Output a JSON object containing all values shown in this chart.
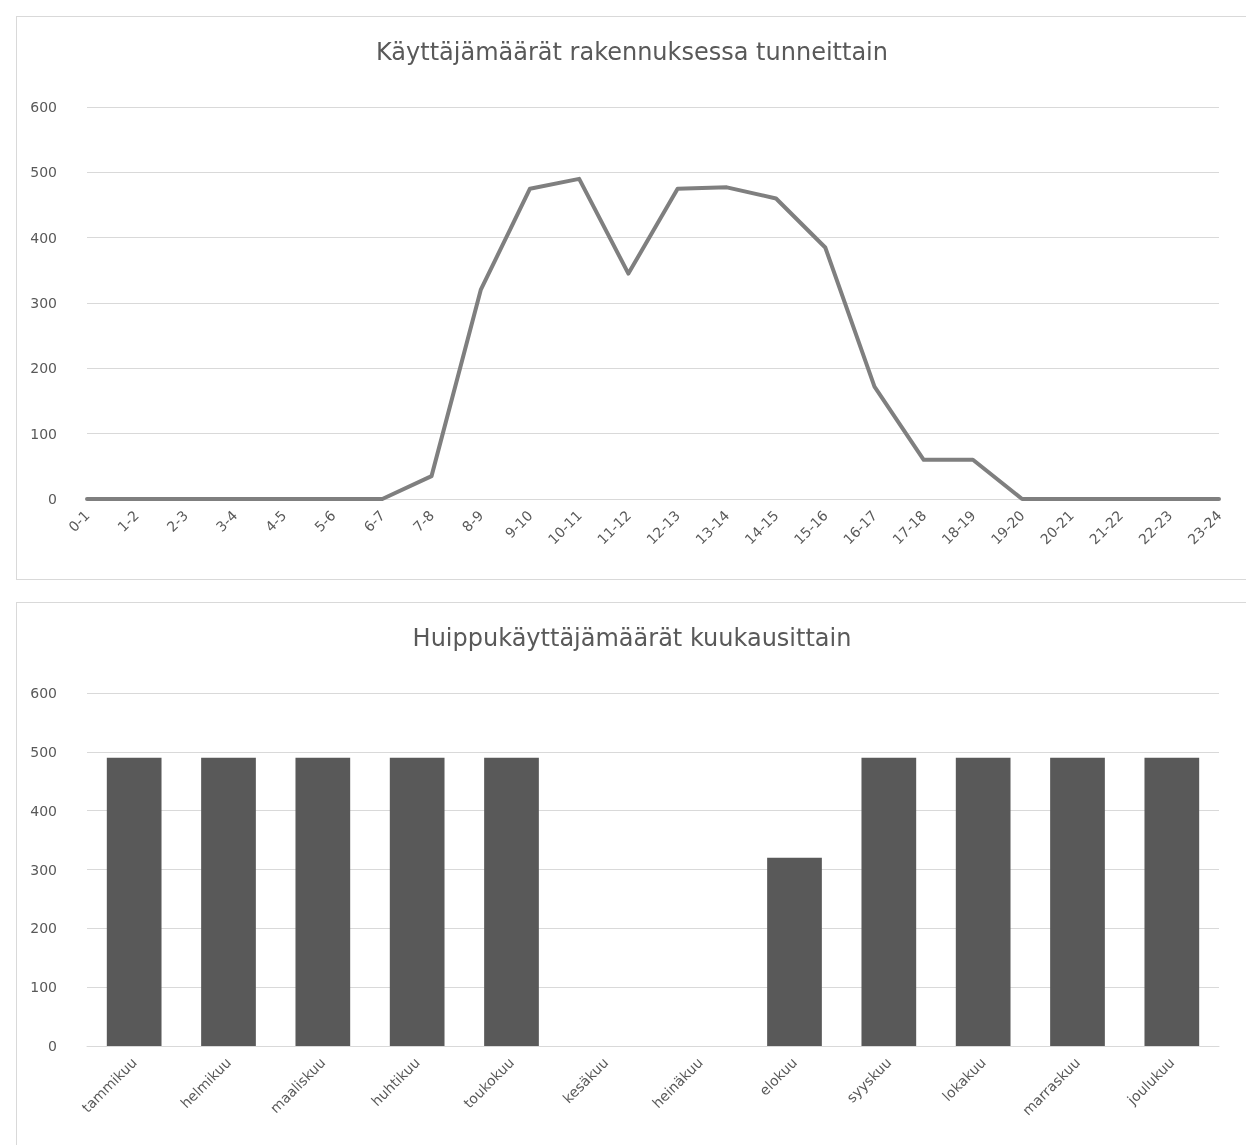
{
  "chart_data": [
    {
      "type": "line",
      "title": "Käyttäjämäärät rakennuksessa tunneittain",
      "categories": [
        "0-1",
        "1-2",
        "2-3",
        "3-4",
        "4-5",
        "5-6",
        "6-7",
        "7-8",
        "8-9",
        "9-10",
        "10-11",
        "11-12",
        "12-13",
        "13-14",
        "14-15",
        "15-16",
        "16-17",
        "17-18",
        "18-19",
        "19-20",
        "20-21",
        "21-22",
        "22-23",
        "23-24"
      ],
      "series": [
        {
          "color": "#7f7f7f",
          "values": [
            0,
            0,
            0,
            0,
            0,
            0,
            0,
            35,
            320,
            475,
            490,
            345,
            475,
            477,
            460,
            385,
            172,
            60,
            60,
            0,
            0,
            0,
            0,
            0
          ]
        }
      ],
      "ylim": [
        0,
        600
      ],
      "yticks": [
        0,
        100,
        200,
        300,
        400,
        500,
        600
      ],
      "grid": "y",
      "marker": "none",
      "line_style": "solid"
    },
    {
      "type": "bar",
      "title": "Huippukäyttäjämäärät kuukausittain",
      "categories": [
        "tammikuu",
        "helmikuu",
        "maaliskuu",
        "huhtikuu",
        "toukokuu",
        "kesäkuu",
        "heinäkuu",
        "elokuu",
        "syyskuu",
        "lokakuu",
        "marraskuu",
        "joulukuu"
      ],
      "series": [
        {
          "color": "#595959",
          "values": [
            490,
            490,
            490,
            490,
            490,
            0,
            0,
            320,
            490,
            490,
            490,
            490
          ]
        }
      ],
      "ylim": [
        0,
        600
      ],
      "yticks": [
        0,
        100,
        200,
        300,
        400,
        500,
        600
      ],
      "grid": "y"
    }
  ]
}
